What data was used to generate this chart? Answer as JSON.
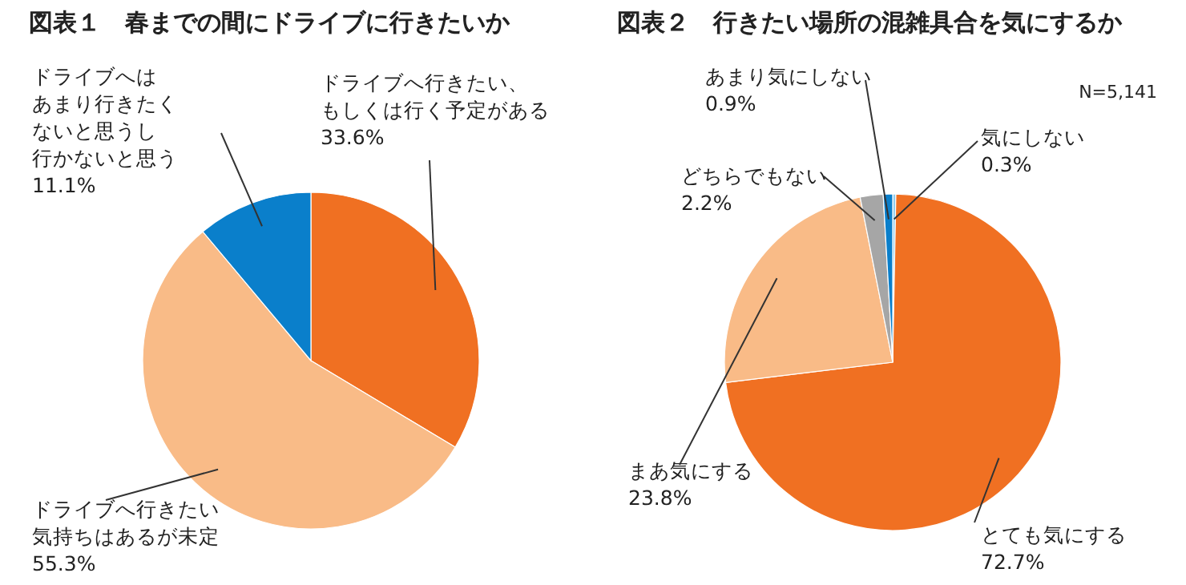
{
  "chart_data": [
    {
      "type": "pie",
      "title": "図表１　春までの間にドライブに行きたいか",
      "categories": [
        "ドライブへ行きたい、もしくは行く予定がある",
        "ドライブへ行きたい気持ちはあるが未定",
        "ドライブへはあまり行きたくないと思うし行かないと思う"
      ],
      "values": [
        33.6,
        55.3,
        11.1
      ],
      "colors": [
        "#f07022",
        "#f9bb87",
        "#0a7fcb"
      ],
      "value_labels": [
        "33.6%",
        "55.3%",
        "11.1%"
      ]
    },
    {
      "type": "pie",
      "title": "図表２　行きたい場所の混雑具合を気にするか",
      "annotations": [
        "N=5,141"
      ],
      "categories": [
        "気にしない",
        "とても気にする",
        "まあ気にする",
        "どちらでもない",
        "あまり気にしない"
      ],
      "values": [
        0.3,
        72.7,
        23.8,
        2.2,
        0.9
      ],
      "colors": [
        "#8ecdf0",
        "#f07022",
        "#f9bb87",
        "#a6a6a6",
        "#0a7fcb"
      ],
      "value_labels": [
        "0.3%",
        "72.7%",
        "23.8%",
        "2.2%",
        "0.9%"
      ]
    }
  ]
}
